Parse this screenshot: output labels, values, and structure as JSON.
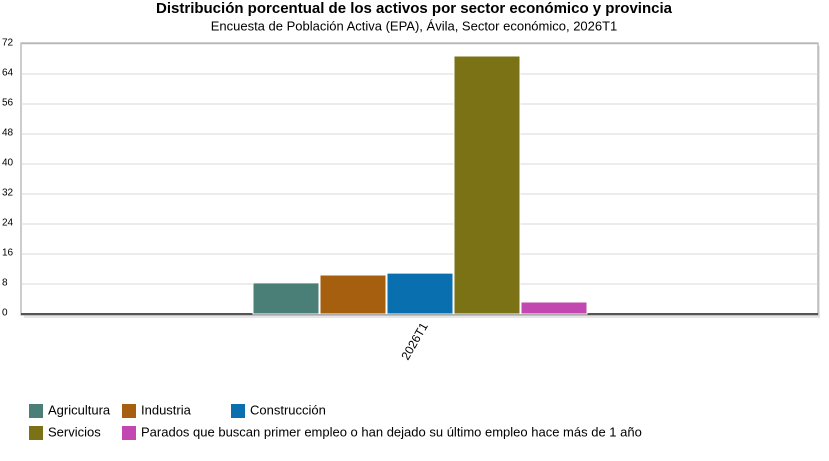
{
  "chart_data": {
    "type": "bar",
    "title": "Distribución porcentual de los activos por sector económico y provincia",
    "subtitle": "Encuesta de Población Activa (EPA), Ávila, Sector económico, 2026T1",
    "categories": [
      "2026T1"
    ],
    "series": [
      {
        "name": "Agricultura",
        "color": "#4a7f78",
        "values": [
          8.3
        ]
      },
      {
        "name": "Industria",
        "color": "#a65f0e",
        "values": [
          10.4
        ]
      },
      {
        "name": "Construcción",
        "color": "#0a6faf",
        "values": [
          10.9
        ]
      },
      {
        "name": "Servicios",
        "color": "#7a7214",
        "values": [
          68.8
        ]
      },
      {
        "name": "Parados que buscan primer empleo o han dejado su último empleo hace más de 1 año",
        "color": "#c247b0",
        "values": [
          3.2
        ]
      }
    ],
    "ylim": [
      0,
      72
    ],
    "yticks": [
      0,
      8,
      16,
      24,
      32,
      40,
      48,
      56,
      64,
      72
    ],
    "grid": true
  }
}
